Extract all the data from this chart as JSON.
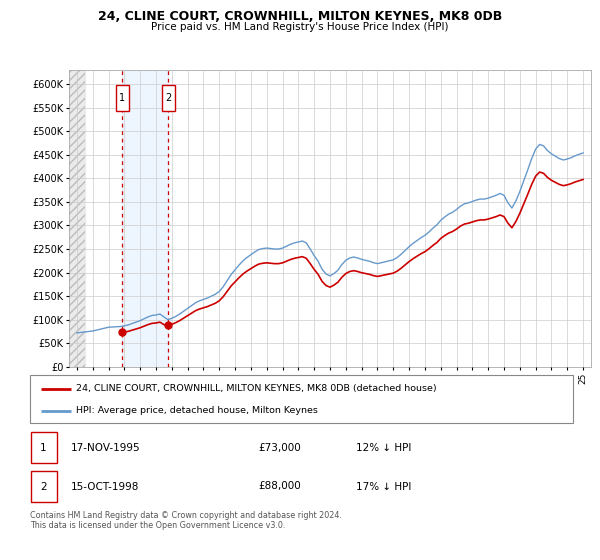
{
  "title1": "24, CLINE COURT, CROWNHILL, MILTON KEYNES, MK8 0DB",
  "title2": "Price paid vs. HM Land Registry's House Price Index (HPI)",
  "ylabel_ticks": [
    "£0",
    "£50K",
    "£100K",
    "£150K",
    "£200K",
    "£250K",
    "£300K",
    "£350K",
    "£400K",
    "£450K",
    "£500K",
    "£550K",
    "£600K"
  ],
  "ytick_values": [
    0,
    50000,
    100000,
    150000,
    200000,
    250000,
    300000,
    350000,
    400000,
    450000,
    500000,
    550000,
    600000
  ],
  "ylim": [
    0,
    630000
  ],
  "sale_dates_num": [
    1995.88,
    1998.79
  ],
  "sale_prices": [
    73000,
    88000
  ],
  "sale_labels": [
    "1",
    "2"
  ],
  "sale_info": [
    {
      "label": "1",
      "date": "17-NOV-1995",
      "price": "£73,000",
      "hpi_diff": "12% ↓ HPI"
    },
    {
      "label": "2",
      "date": "15-OCT-1998",
      "price": "£88,000",
      "hpi_diff": "17% ↓ HPI"
    }
  ],
  "legend_line1": "24, CLINE COURT, CROWNHILL, MILTON KEYNES, MK8 0DB (detached house)",
  "legend_line2": "HPI: Average price, detached house, Milton Keynes",
  "footer": "Contains HM Land Registry data © Crown copyright and database right 2024.\nThis data is licensed under the Open Government Licence v3.0.",
  "hpi_color": "#6699cc",
  "sale_line_color": "#cc0000",
  "sale_point_color": "#cc0000",
  "vline_color": "#cc0000",
  "bg_color": "#ffffff",
  "grid_color": "#cccccc",
  "xlim_start": 1992.5,
  "xlim_end": 2025.5,
  "hatch_end": 1993.5,
  "hpi_data": {
    "years": [
      1993.0,
      1993.25,
      1993.5,
      1993.75,
      1994.0,
      1994.25,
      1994.5,
      1994.75,
      1995.0,
      1995.25,
      1995.5,
      1995.75,
      1996.0,
      1996.25,
      1996.5,
      1996.75,
      1997.0,
      1997.25,
      1997.5,
      1997.75,
      1998.0,
      1998.25,
      1998.5,
      1998.75,
      1999.0,
      1999.25,
      1999.5,
      1999.75,
      2000.0,
      2000.25,
      2000.5,
      2000.75,
      2001.0,
      2001.25,
      2001.5,
      2001.75,
      2002.0,
      2002.25,
      2002.5,
      2002.75,
      2003.0,
      2003.25,
      2003.5,
      2003.75,
      2004.0,
      2004.25,
      2004.5,
      2004.75,
      2005.0,
      2005.25,
      2005.5,
      2005.75,
      2006.0,
      2006.25,
      2006.5,
      2006.75,
      2007.0,
      2007.25,
      2007.5,
      2007.75,
      2008.0,
      2008.25,
      2008.5,
      2008.75,
      2009.0,
      2009.25,
      2009.5,
      2009.75,
      2010.0,
      2010.25,
      2010.5,
      2010.75,
      2011.0,
      2011.25,
      2011.5,
      2011.75,
      2012.0,
      2012.25,
      2012.5,
      2012.75,
      2013.0,
      2013.25,
      2013.5,
      2013.75,
      2014.0,
      2014.25,
      2014.5,
      2014.75,
      2015.0,
      2015.25,
      2015.5,
      2015.75,
      2016.0,
      2016.25,
      2016.5,
      2016.75,
      2017.0,
      2017.25,
      2017.5,
      2017.75,
      2018.0,
      2018.25,
      2018.5,
      2018.75,
      2019.0,
      2019.25,
      2019.5,
      2019.75,
      2020.0,
      2020.25,
      2020.5,
      2020.75,
      2021.0,
      2021.25,
      2021.5,
      2021.75,
      2022.0,
      2022.25,
      2022.5,
      2022.75,
      2023.0,
      2023.25,
      2023.5,
      2023.75,
      2024.0,
      2024.25,
      2024.5,
      2024.75,
      2025.0
    ],
    "values": [
      72000,
      73000,
      74000,
      75000,
      76000,
      78000,
      80000,
      82000,
      84000,
      84500,
      85000,
      85500,
      87000,
      89000,
      92000,
      95000,
      98000,
      102000,
      106000,
      109000,
      110000,
      112000,
      106000,
      100000,
      103000,
      107000,
      112000,
      118000,
      124000,
      130000,
      136000,
      140000,
      143000,
      146000,
      150000,
      154000,
      160000,
      170000,
      183000,
      196000,
      206000,
      216000,
      225000,
      232000,
      238000,
      244000,
      249000,
      251000,
      252000,
      251000,
      250000,
      250000,
      252000,
      256000,
      260000,
      263000,
      265000,
      267000,
      263000,
      250000,
      236000,
      224000,
      207000,
      197000,
      193000,
      198000,
      205000,
      217000,
      226000,
      231000,
      233000,
      231000,
      228000,
      226000,
      224000,
      221000,
      219000,
      221000,
      223000,
      225000,
      227000,
      232000,
      239000,
      247000,
      255000,
      262000,
      268000,
      274000,
      279000,
      286000,
      294000,
      301000,
      311000,
      318000,
      324000,
      328000,
      334000,
      341000,
      346000,
      348000,
      351000,
      354000,
      356000,
      356000,
      358000,
      361000,
      364000,
      368000,
      364000,
      348000,
      337000,
      352000,
      372000,
      395000,
      418000,
      442000,
      462000,
      472000,
      469000,
      459000,
      452000,
      447000,
      442000,
      439000,
      441000,
      444000,
      448000,
      451000,
      454000
    ]
  }
}
